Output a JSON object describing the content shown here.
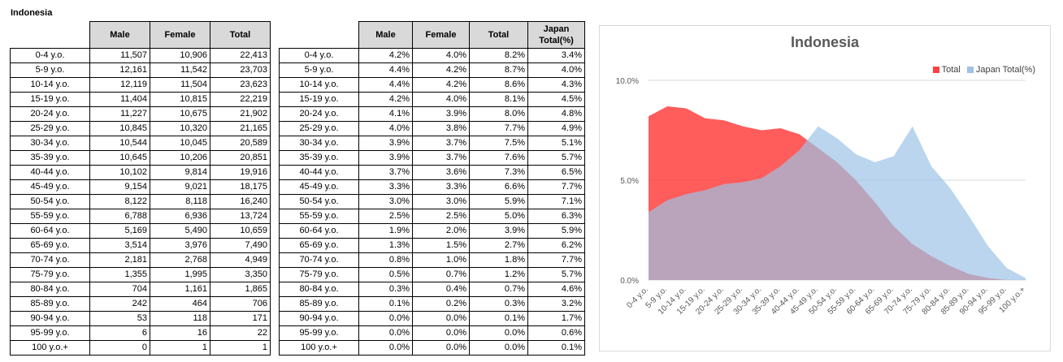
{
  "sheet_title": "Indonesia",
  "table_counts": {
    "headers": [
      "Male",
      "Female",
      "Total"
    ],
    "rows": [
      [
        "0-4 y.o.",
        "11,507",
        "10,906",
        "22,413"
      ],
      [
        "5-9 y.o.",
        "12,161",
        "11,542",
        "23,703"
      ],
      [
        "10-14 y.o.",
        "12,119",
        "11,504",
        "23,623"
      ],
      [
        "15-19 y.o.",
        "11,404",
        "10,815",
        "22,219"
      ],
      [
        "20-24 y.o.",
        "11,227",
        "10,675",
        "21,902"
      ],
      [
        "25-29 y.o.",
        "10,845",
        "10,320",
        "21,165"
      ],
      [
        "30-34 y.o.",
        "10,544",
        "10,045",
        "20,589"
      ],
      [
        "35-39 y.o.",
        "10,645",
        "10,206",
        "20,851"
      ],
      [
        "40-44 y.o.",
        "10,102",
        "9,814",
        "19,916"
      ],
      [
        "45-49 y.o.",
        "9,154",
        "9,021",
        "18,175"
      ],
      [
        "50-54 y.o.",
        "8,122",
        "8,118",
        "16,240"
      ],
      [
        "55-59 y.o.",
        "6,788",
        "6,936",
        "13,724"
      ],
      [
        "60-64 y.o.",
        "5,169",
        "5,490",
        "10,659"
      ],
      [
        "65-69 y.o.",
        "3,514",
        "3,976",
        "7,490"
      ],
      [
        "70-74 y.o.",
        "2,181",
        "2,768",
        "4,949"
      ],
      [
        "75-79 y.o.",
        "1,355",
        "1,995",
        "3,350"
      ],
      [
        "80-84 y.o.",
        "704",
        "1,161",
        "1,865"
      ],
      [
        "85-89 y.o.",
        "242",
        "464",
        "706"
      ],
      [
        "90-94 y.o.",
        "53",
        "118",
        "171"
      ],
      [
        "95-99 y.o.",
        "6",
        "16",
        "22"
      ],
      [
        "100 y.o.+",
        "0",
        "1",
        "1"
      ]
    ]
  },
  "table_percent": {
    "headers": [
      "Male",
      "Female",
      "Total",
      "Japan Total(%)"
    ],
    "rows": [
      [
        "0-4 y.o.",
        "4.2%",
        "4.0%",
        "8.2%",
        "3.4%"
      ],
      [
        "5-9 y.o.",
        "4.4%",
        "4.2%",
        "8.7%",
        "4.0%"
      ],
      [
        "10-14 y.o.",
        "4.4%",
        "4.2%",
        "8.6%",
        "4.3%"
      ],
      [
        "15-19 y.o.",
        "4.2%",
        "4.0%",
        "8.1%",
        "4.5%"
      ],
      [
        "20-24 y.o.",
        "4.1%",
        "3.9%",
        "8.0%",
        "4.8%"
      ],
      [
        "25-29 y.o.",
        "4.0%",
        "3.8%",
        "7.7%",
        "4.9%"
      ],
      [
        "30-34 y.o.",
        "3.9%",
        "3.7%",
        "7.5%",
        "5.1%"
      ],
      [
        "35-39 y.o.",
        "3.9%",
        "3.7%",
        "7.6%",
        "5.7%"
      ],
      [
        "40-44 y.o.",
        "3.7%",
        "3.6%",
        "7.3%",
        "6.5%"
      ],
      [
        "45-49 y.o.",
        "3.3%",
        "3.3%",
        "6.6%",
        "7.7%"
      ],
      [
        "50-54 y.o.",
        "3.0%",
        "3.0%",
        "5.9%",
        "7.1%"
      ],
      [
        "55-59 y.o.",
        "2.5%",
        "2.5%",
        "5.0%",
        "6.3%"
      ],
      [
        "60-64 y.o.",
        "1.9%",
        "2.0%",
        "3.9%",
        "5.9%"
      ],
      [
        "65-69 y.o.",
        "1.3%",
        "1.5%",
        "2.7%",
        "6.2%"
      ],
      [
        "70-74 y.o.",
        "0.8%",
        "1.0%",
        "1.8%",
        "7.7%"
      ],
      [
        "75-79 y.o.",
        "0.5%",
        "0.7%",
        "1.2%",
        "5.7%"
      ],
      [
        "80-84 y.o.",
        "0.3%",
        "0.4%",
        "0.7%",
        "4.6%"
      ],
      [
        "85-89 y.o.",
        "0.1%",
        "0.2%",
        "0.3%",
        "3.2%"
      ],
      [
        "90-94 y.o.",
        "0.0%",
        "0.0%",
        "0.1%",
        "1.7%"
      ],
      [
        "95-99 y.o.",
        "0.0%",
        "0.0%",
        "0.0%",
        "0.6%"
      ],
      [
        "100 y.o.+",
        "0.0%",
        "0.0%",
        "0.0%",
        "0.1%"
      ]
    ]
  },
  "chart_data": {
    "type": "area",
    "title": "Indonesia",
    "categories": [
      "0-4 y.o.",
      "5-9 y.o.",
      "10-14 y.o.",
      "15-19 y.o.",
      "20-24 y.o.",
      "25-29 y.o.",
      "30-34 y.o.",
      "35-39 y.o.",
      "40-44 y.o.",
      "45-49 y.o.",
      "50-54 y.o.",
      "55-59 y.o.",
      "60-64 y.o.",
      "65-69 y.o.",
      "70-74 y.o.",
      "75-79 y.o.",
      "80-84 y.o.",
      "85-89 y.o.",
      "90-94 y.o.",
      "95-99 y.o.",
      "100 y.o.+"
    ],
    "series": [
      {
        "name": "Total",
        "color": "#ff4040",
        "values": [
          8.2,
          8.7,
          8.6,
          8.1,
          8.0,
          7.7,
          7.5,
          7.6,
          7.3,
          6.6,
          5.9,
          5.0,
          3.9,
          2.7,
          1.8,
          1.2,
          0.7,
          0.3,
          0.1,
          0.0,
          0.0
        ]
      },
      {
        "name": "Japan Total(%)",
        "color": "#9dc3e6",
        "values": [
          3.4,
          4.0,
          4.3,
          4.5,
          4.8,
          4.9,
          5.1,
          5.7,
          6.5,
          7.7,
          7.1,
          6.3,
          5.9,
          6.2,
          7.7,
          5.7,
          4.6,
          3.2,
          1.7,
          0.6,
          0.1
        ]
      }
    ],
    "ylim": [
      0,
      10
    ],
    "yticks": [
      "0.0%",
      "5.0%",
      "10.0%"
    ],
    "grid": true,
    "legend": "top-right"
  }
}
